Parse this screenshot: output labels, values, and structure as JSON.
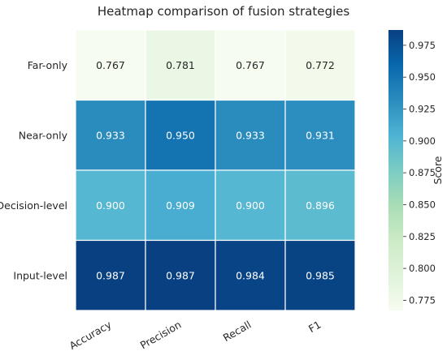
{
  "chart_data": {
    "type": "heatmap",
    "title": "Heatmap comparison of fusion strategies",
    "columns": [
      "Accuracy",
      "Precision",
      "Recall",
      "F1"
    ],
    "rows": [
      "Far-only",
      "Near-only",
      "Decision-level",
      "Input-level"
    ],
    "values": [
      [
        0.767,
        0.781,
        0.767,
        0.772
      ],
      [
        0.933,
        0.95,
        0.933,
        0.931
      ],
      [
        0.9,
        0.909,
        0.9,
        0.896
      ],
      [
        0.987,
        0.987,
        0.984,
        0.985
      ]
    ],
    "labels": [
      [
        "0.767",
        "0.781",
        "0.767",
        "0.772"
      ],
      [
        "0.933",
        "0.950",
        "0.933",
        "0.931"
      ],
      [
        "0.900",
        "0.909",
        "0.900",
        "0.896"
      ],
      [
        "0.987",
        "0.987",
        "0.984",
        "0.985"
      ]
    ],
    "colormap": "GnBu",
    "colorbar": {
      "label": "Score",
      "range": [
        0.767,
        0.987
      ],
      "ticks": [
        0.775,
        0.8,
        0.825,
        0.85,
        0.875,
        0.9,
        0.925,
        0.95,
        0.975
      ],
      "tick_labels": [
        "0.775",
        "0.800",
        "0.825",
        "0.850",
        "0.875",
        "0.900",
        "0.925",
        "0.950",
        "0.975"
      ]
    },
    "text_color_light": "#ffffff",
    "text_color_dark": "#262626",
    "cell_border_color": "#ffffff"
  }
}
